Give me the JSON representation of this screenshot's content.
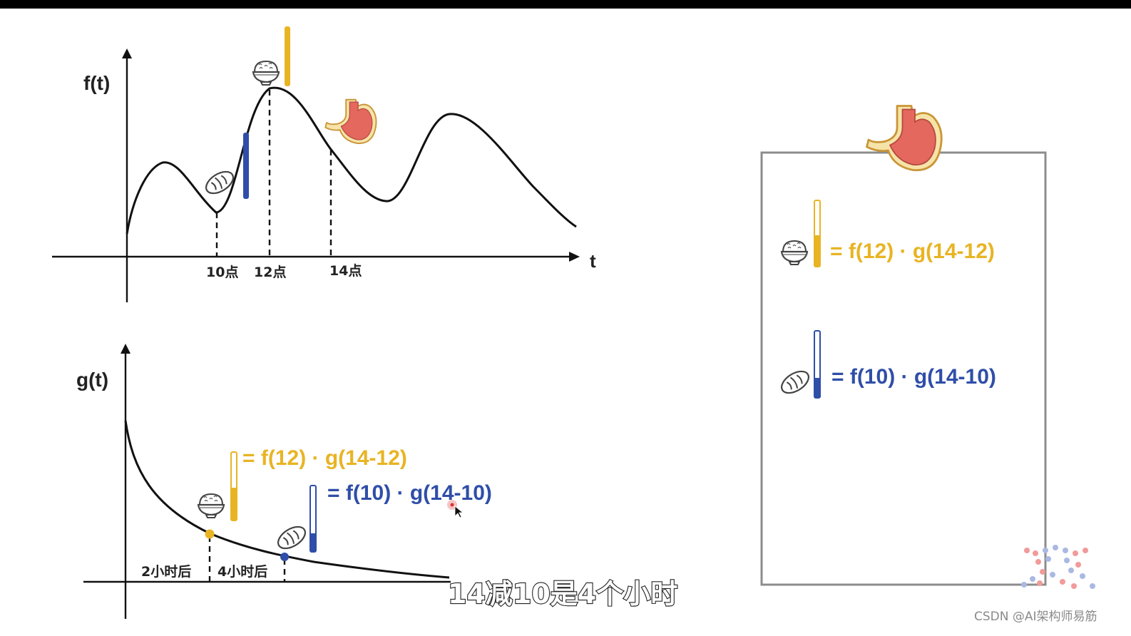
{
  "colors": {
    "ink": "#111111",
    "rice_yellow": "#E8B424",
    "bread_blue": "#2F4EA8",
    "panel_border": "#8c8c8c",
    "stomach_red": "#E4685E",
    "stomach_outline": "#D8A238"
  },
  "top_chart": {
    "y_label": "f(t)",
    "x_label": "t",
    "ticks": [
      "10点",
      "12点",
      "14点"
    ]
  },
  "bottom_chart": {
    "y_label": "g(t)",
    "ticks": [
      "2小时后",
      "4小时后"
    ],
    "formula_rice": "= f(12) · g(14-12)",
    "formula_bread": "= f(10) · g(14-10)"
  },
  "panel": {
    "formula_rice": "= f(12) · g(14-12)",
    "formula_bread": "= f(10) · g(14-10)"
  },
  "subtitle": "14减10是4个小时",
  "watermark": "CSDN @AI架构师易筋",
  "icons": [
    "rice-bowl-icon",
    "bread-icon",
    "stomach-icon",
    "cursor-icon",
    "logo-icon"
  ]
}
